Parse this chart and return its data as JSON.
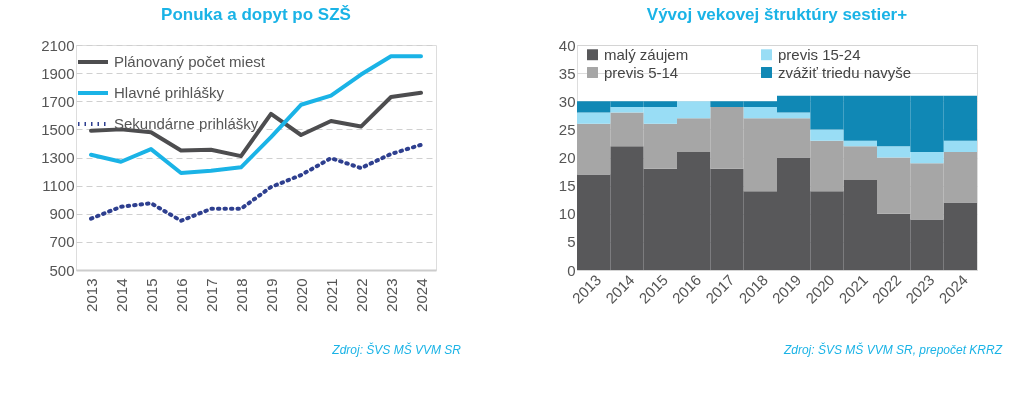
{
  "chart_data": [
    {
      "type": "line",
      "title": "Ponuka a dopyt po SZŠ",
      "categories": [
        "2013",
        "2014",
        "2015",
        "2016",
        "2017",
        "2018",
        "2019",
        "2020",
        "2021",
        "2022",
        "2023",
        "2024"
      ],
      "series": [
        {
          "name": "Plánovaný počet miest",
          "color": "#4d4d4f",
          "line_style": "solid",
          "values": [
            1490,
            1500,
            1480,
            1350,
            1355,
            1310,
            1610,
            1460,
            1560,
            1520,
            1730,
            1760
          ]
        },
        {
          "name": "Hlavné prihlášky",
          "color": "#1ab3e6",
          "line_style": "solid",
          "values": [
            1320,
            1270,
            1360,
            1190,
            1205,
            1230,
            1445,
            1675,
            1740,
            1890,
            2020,
            2020
          ]
        },
        {
          "name": "Sekundárne prihlášky",
          "color": "#2e3f8f",
          "line_style": "dotted",
          "values": [
            865,
            950,
            975,
            850,
            935,
            935,
            1090,
            1175,
            1295,
            1225,
            1325,
            1390
          ]
        }
      ],
      "ylim": [
        500,
        2100
      ],
      "yticks": [
        500,
        700,
        900,
        1100,
        1300,
        1500,
        1700,
        1900,
        2100
      ],
      "grid": "y",
      "legend": "top left",
      "marker": "none",
      "annotations": [
        "Zdroj: ŠVS MŠ VVM SR"
      ]
    },
    {
      "type": "bar",
      "stacked": true,
      "title": "Vývoj vekovej štruktúry sestier+",
      "categories": [
        "2013",
        "2014",
        "2015",
        "2016",
        "2017",
        "2018",
        "2019",
        "2020",
        "2021",
        "2022",
        "2023",
        "2024"
      ],
      "series": [
        {
          "name": "malý záujem",
          "color": "#58585a",
          "values": [
            17,
            22,
            18,
            21,
            18,
            14,
            20,
            14,
            16,
            10,
            9,
            12
          ]
        },
        {
          "name": "previs 5-14",
          "color": "#a6a6a6",
          "values": [
            9,
            6,
            8,
            6,
            11,
            13,
            7,
            9,
            6,
            10,
            10,
            9
          ]
        },
        {
          "name": "previs 15-24",
          "color": "#99ddf5",
          "values": [
            2,
            1,
            3,
            3,
            0,
            2,
            1,
            2,
            1,
            2,
            2,
            2
          ]
        },
        {
          "name": "zvážiť triedu navyše",
          "color": "#1088b5",
          "values": [
            2,
            1,
            1,
            0,
            1,
            1,
            3,
            6,
            8,
            9,
            10,
            8
          ]
        }
      ],
      "ylim": [
        0,
        40
      ],
      "yticks": [
        0,
        5,
        10,
        15,
        20,
        25,
        30,
        35,
        40
      ],
      "grid": "y",
      "legend": "top",
      "annotations": [
        "Zdroj: ŠVS MŠ VVM SR, prepočet KRRZ"
      ]
    }
  ]
}
